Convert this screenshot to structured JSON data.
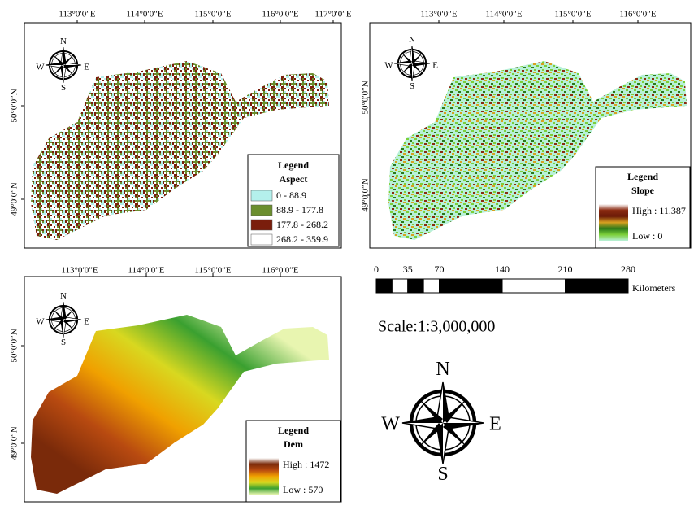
{
  "panels": [
    {
      "lon_labels": [
        "113°0′0″E",
        "114°0′0″E",
        "115°0′0″E",
        "116°0′0″E",
        "117°0′0″E"
      ],
      "lat_labels": [
        "50°0′0″N",
        "49°0′0″N"
      ],
      "compass": {
        "n": "N",
        "e": "E",
        "s": "S",
        "w": "W"
      },
      "legend": {
        "title": "Legend",
        "layer": "Aspect",
        "classes": [
          {
            "label": "0 - 88.9",
            "color": "#b4f0ec"
          },
          {
            "label": "88.9 - 177.8",
            "color": "#6b8e2e"
          },
          {
            "label": "177.8 - 268.2",
            "color": "#7a1e0c"
          },
          {
            "label": "268.2 - 359.9",
            "color": "#ffffff"
          }
        ]
      }
    },
    {
      "lon_labels": [
        "113°0′0″E",
        "114°0′0″E",
        "115°0′0″E",
        "116°0′0″E"
      ],
      "lat_labels": [
        "50°0′0″N",
        "49°0′0″N"
      ],
      "compass": {
        "n": "N",
        "e": "E",
        "s": "S",
        "w": "W"
      },
      "legend": {
        "title": "Legend",
        "layer": "Slope",
        "high": "High : 11.387",
        "low": "Low : 0",
        "ramp": [
          "#ffffff",
          "#8a2a10",
          "#6b1a08",
          "#d8a020",
          "#2a7a1a",
          "#7ccf3a",
          "#b8f0d8"
        ]
      }
    },
    {
      "lon_labels": [
        "113°0′0″E",
        "114°0′0″E",
        "115°0′0″E",
        "116°0′0″E"
      ],
      "lat_labels": [
        "50°0′0″N",
        "49°0′0″N"
      ],
      "compass": {
        "n": "N",
        "e": "E",
        "s": "S",
        "w": "W"
      },
      "legend": {
        "title": "Legend",
        "layer": "Dem",
        "high": "High : 1472",
        "low": "Low : 570",
        "ramp": [
          "#ffffff",
          "#7a2a0a",
          "#b84a10",
          "#f0a000",
          "#d8d820",
          "#3aa030",
          "#e8f5b0"
        ]
      }
    }
  ],
  "scale_bar": {
    "ticks": [
      0,
      35,
      70,
      140,
      210,
      280
    ],
    "unit": "Kilometers"
  },
  "scale_text": "Scale:1:3,000,000",
  "north_arrow": {
    "n": "N",
    "e": "E",
    "s": "S",
    "w": "W"
  }
}
